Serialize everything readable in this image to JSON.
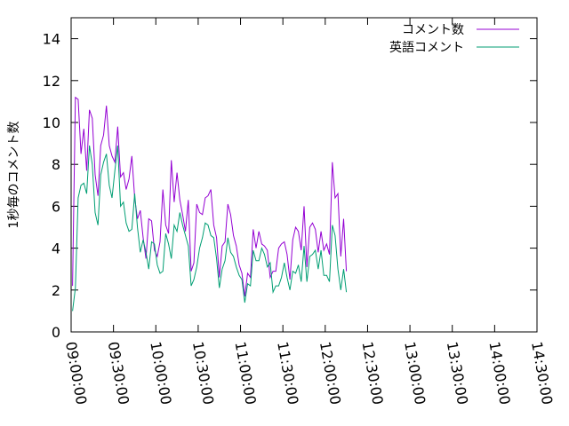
{
  "chart_data": {
    "type": "line",
    "title": "",
    "xlabel": "",
    "ylabel": "1秒毎のコメント数",
    "xlim": [
      "09:00:00",
      "14:30:00"
    ],
    "ylim": [
      0,
      15
    ],
    "x_ticks": [
      "09:00:00",
      "09:30:00",
      "10:00:00",
      "10:30:00",
      "11:00:00",
      "11:30:00",
      "12:00:00",
      "12:30:00",
      "13:00:00",
      "13:30:00",
      "14:00:00",
      "14:30:00"
    ],
    "y_ticks": [
      0,
      2,
      4,
      6,
      8,
      10,
      12,
      14
    ],
    "grid": false,
    "legend_position": "top-right",
    "x_start": "09:01:00",
    "x_step_minutes": 2,
    "series": [
      {
        "name": "コメント数",
        "color": "#9400d3",
        "values": [
          2.2,
          11.2,
          11.1,
          8.5,
          9.7,
          7.7,
          10.6,
          10.2,
          7.5,
          6.5,
          8.9,
          9.4,
          10.8,
          8.9,
          8.4,
          8.1,
          9.8,
          7.4,
          7.6,
          6.8,
          7.3,
          8.4,
          6.4,
          5.4,
          5.8,
          4.5,
          3.5,
          5.4,
          5.3,
          3.9,
          3.6,
          4.3,
          6.8,
          5.1,
          4.7,
          8.2,
          6.2,
          7.6,
          6.3,
          5.6,
          4.8,
          6.3,
          2.9,
          3.3,
          6.1,
          5.7,
          5.6,
          6.4,
          6.5,
          6.8,
          5.1,
          4.5,
          2.6,
          4.1,
          4.3,
          6.1,
          5.6,
          4.6,
          4.1,
          3.2,
          2.8,
          1.7,
          2.8,
          2.6,
          4.9,
          4.0,
          4.8,
          4.2,
          4.1,
          3.9,
          2.6,
          2.9,
          2.9,
          4.0,
          4.2,
          4.3,
          3.7,
          2.5,
          4.4,
          5.0,
          4.8,
          3.9,
          6.0,
          3.1,
          5.0,
          5.2,
          4.9,
          3.8,
          4.8,
          3.9,
          4.2,
          3.7,
          8.1,
          6.4,
          6.6,
          3.6,
          5.4,
          2.9
        ]
      },
      {
        "name": "英語コメント",
        "color": "#009e73",
        "values": [
          1.0,
          2.1,
          6.4,
          7.0,
          7.1,
          6.6,
          8.9,
          8.0,
          5.7,
          5.1,
          7.5,
          8.1,
          8.5,
          7.0,
          6.4,
          7.7,
          8.9,
          6.0,
          6.2,
          5.2,
          4.8,
          4.9,
          6.6,
          5.0,
          3.8,
          4.4,
          3.8,
          3.0,
          4.3,
          4.2,
          3.2,
          2.8,
          2.9,
          4.7,
          4.2,
          3.5,
          5.1,
          4.8,
          5.7,
          5.1,
          4.6,
          4.1,
          2.2,
          2.5,
          3.1,
          4.0,
          4.5,
          5.2,
          5.1,
          4.6,
          4.5,
          3.5,
          2.1,
          3.0,
          3.4,
          4.5,
          3.8,
          3.6,
          3.1,
          2.7,
          2.5,
          1.4,
          2.3,
          2.2,
          3.9,
          3.4,
          3.4,
          4.0,
          3.7,
          3.1,
          3.3,
          1.9,
          2.2,
          2.2,
          2.6,
          3.3,
          2.6,
          2.0,
          2.9,
          2.8,
          3.2,
          2.4,
          4.1,
          2.4,
          3.6,
          3.7,
          3.9,
          3.0,
          3.9,
          2.7,
          2.7,
          2.4,
          5.1,
          4.6,
          3.0,
          2.0,
          3.0,
          1.9
        ]
      }
    ]
  }
}
